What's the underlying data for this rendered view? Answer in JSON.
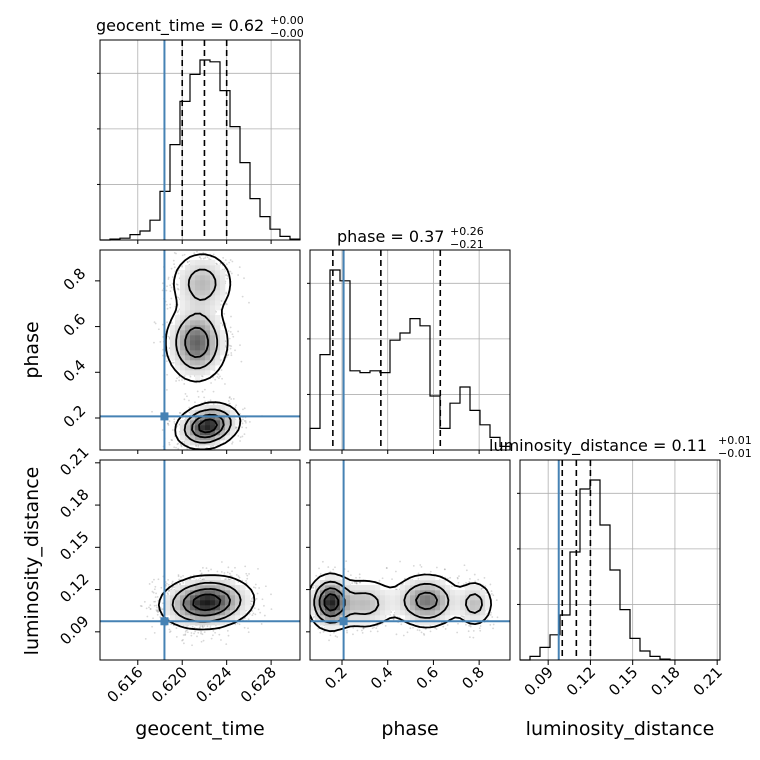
{
  "chart_data": {
    "type": "corner",
    "parameters": [
      "geocent_time",
      "phase",
      "luminosity_distance"
    ],
    "truths": [
      0.6184,
      0.207,
      0.0975
    ],
    "titles": [
      {
        "name": "geocent_time",
        "median": "0.62",
        "plus": "+0.00",
        "minus": "−0.00"
      },
      {
        "name": "phase",
        "median": "0.37",
        "plus": "+0.26",
        "minus": "−0.21"
      },
      {
        "name": "luminosity_distance",
        "median": "0.11",
        "plus": "+0.01",
        "minus": "−0.01"
      }
    ],
    "ranges": [
      [
        0.6126,
        0.6306
      ],
      [
        0.06,
        0.935
      ],
      [
        0.07,
        0.212
      ]
    ],
    "ticks": [
      [
        0.616,
        0.62,
        0.624,
        0.628
      ],
      [
        0.2,
        0.4,
        0.6,
        0.8
      ],
      [
        0.09,
        0.12,
        0.15,
        0.18,
        0.21
      ]
    ],
    "tick_labels": [
      [
        "0.616",
        "0.620",
        "0.624",
        "0.628"
      ],
      [
        "0.2",
        "0.4",
        "0.6",
        "0.8"
      ],
      [
        "0.09",
        "0.12",
        "0.15",
        "0.18",
        "0.21"
      ]
    ],
    "quantiles": [
      [
        0.62,
        0.622,
        0.624
      ],
      [
        0.16,
        0.37,
        0.63
      ],
      [
        0.1,
        0.11,
        0.12
      ]
    ],
    "histograms": [
      {
        "heights": [
          0,
          0.005,
          0.01,
          0.03,
          0.05,
          0.11,
          0.27,
          0.53,
          0.77,
          0.92,
          1.0,
          0.99,
          0.83,
          0.63,
          0.43,
          0.23,
          0.13,
          0.06,
          0.02,
          0.005
        ]
      },
      {
        "heights": [
          0.12,
          0.53,
          1.0,
          0.94,
          0.44,
          0.43,
          0.44,
          0.43,
          0.61,
          0.65,
          0.73,
          0.69,
          0.3,
          0.12,
          0.26,
          0.35,
          0.22,
          0.14,
          0.07,
          0.02
        ]
      },
      {
        "heights": [
          0,
          0.02,
          0.07,
          0.14,
          0.25,
          0.6,
          0.95,
          1.0,
          0.75,
          0.5,
          0.28,
          0.12,
          0.05,
          0.02,
          0.005,
          0,
          0,
          0,
          0,
          0
        ]
      }
    ],
    "grid": true
  }
}
